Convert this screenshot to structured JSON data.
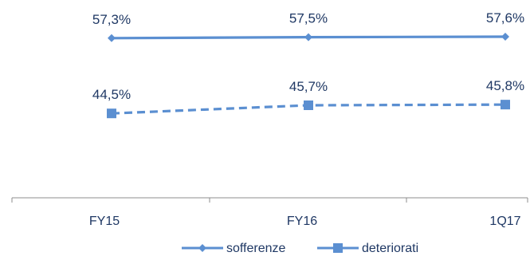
{
  "chart_data": {
    "type": "line",
    "categories": [
      "FY15",
      "FY16",
      "1Q17"
    ],
    "series": [
      {
        "name": "sofferenze",
        "values": [
          57.3,
          57.5,
          57.6
        ],
        "labels": [
          "57,3%",
          "57,5%",
          "57,6%"
        ],
        "marker": "diamond",
        "line_style": "solid"
      },
      {
        "name": "deteriorati",
        "values": [
          44.5,
          45.7,
          45.8
        ],
        "labels": [
          "44,5%",
          "45,7%",
          "45,8%"
        ],
        "marker": "square",
        "line_style": "dashed"
      }
    ],
    "title": "",
    "xlabel": "",
    "ylabel": "",
    "grid": false,
    "legend_position": "bottom",
    "color": "#5b8fd1"
  }
}
